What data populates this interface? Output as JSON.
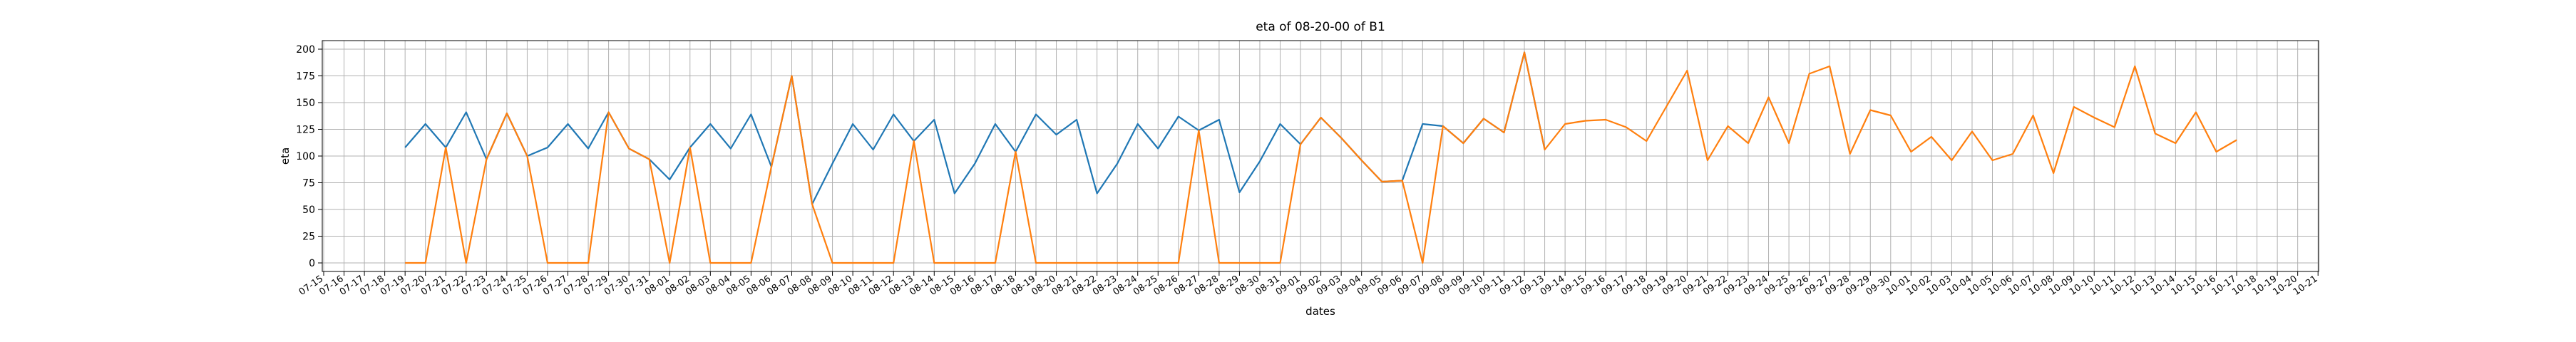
{
  "chart_data": {
    "type": "line",
    "title": "eta of 08-20-00 of B1",
    "xlabel": "dates",
    "ylabel": "eta",
    "grid": true,
    "ylim": [
      -8,
      208
    ],
    "yticks": [
      0,
      25,
      50,
      75,
      100,
      125,
      150,
      175,
      200
    ],
    "x_start": "07-15",
    "x_end": "10-21",
    "x_tick_labels": [
      "07-15",
      "07-16",
      "07-17",
      "07-18",
      "07-19",
      "07-20",
      "07-21",
      "07-22",
      "07-23",
      "07-24",
      "07-25",
      "07-26",
      "07-27",
      "07-28",
      "07-29",
      "07-30",
      "07-31",
      "08-01",
      "08-02",
      "08-03",
      "08-04",
      "08-05",
      "08-06",
      "08-07",
      "08-08",
      "08-09",
      "08-10",
      "08-11",
      "08-12",
      "08-13",
      "08-14",
      "08-15",
      "08-16",
      "08-17",
      "08-18",
      "08-19",
      "08-20",
      "08-21",
      "08-22",
      "08-23",
      "08-24",
      "08-25",
      "08-26",
      "08-27",
      "08-28",
      "08-29",
      "08-30",
      "08-31",
      "09-01",
      "09-02",
      "09-03",
      "09-04",
      "09-05",
      "09-06",
      "09-07",
      "09-08",
      "09-09",
      "09-10",
      "09-11",
      "09-12",
      "09-13",
      "09-14",
      "09-15",
      "09-16",
      "09-17",
      "09-18",
      "09-19",
      "09-20",
      "09-21",
      "09-22",
      "09-23",
      "09-24",
      "09-25",
      "09-26",
      "09-27",
      "09-28",
      "09-29",
      "09-30",
      "10-01",
      "10-02",
      "10-03",
      "10-04",
      "10-05",
      "10-06",
      "10-07",
      "10-08",
      "10-09",
      "10-10",
      "10-11",
      "10-12",
      "10-13",
      "10-14",
      "10-15",
      "10-16",
      "10-17",
      "10-18",
      "10-19",
      "10-20",
      "10-21"
    ],
    "series": [
      {
        "color": "#1f77b4",
        "x": [
          "07-19",
          "07-20",
          "07-21",
          "07-22",
          "07-23",
          "07-24",
          "07-25",
          "07-26",
          "07-27",
          "07-28",
          "07-29",
          "07-30",
          "07-31",
          "08-01",
          "08-02",
          "08-03",
          "08-04",
          "08-05",
          "08-06",
          "08-07",
          "08-08",
          "08-09",
          "08-10",
          "08-11",
          "08-12",
          "08-13",
          "08-14",
          "08-15",
          "08-16",
          "08-17",
          "08-18",
          "08-19",
          "08-20",
          "08-21",
          "08-22",
          "08-23",
          "08-24",
          "08-25",
          "08-26",
          "08-27",
          "08-28",
          "08-29",
          "08-30",
          "08-31",
          "09-01",
          "09-02",
          "09-03",
          "09-04",
          "09-05",
          "09-06",
          "09-07",
          "09-08",
          "09-09",
          "09-10",
          "09-11",
          "09-12",
          "09-13"
        ],
        "y": [
          108,
          130,
          108,
          141,
          97,
          140,
          100,
          108,
          130,
          107,
          141,
          107,
          97,
          78,
          108,
          130,
          107,
          139,
          90,
          175,
          55,
          93,
          130,
          106,
          139,
          114,
          134,
          65,
          93,
          130,
          104,
          139,
          120,
          134,
          65,
          93,
          130,
          107,
          137,
          124,
          134,
          66,
          95,
          130,
          111,
          136,
          117,
          96,
          76,
          77,
          130,
          128,
          112,
          135,
          122,
          197,
          106
        ]
      },
      {
        "color": "#ff7f0e",
        "x": [
          "07-19",
          "07-20",
          "07-21",
          "07-22",
          "07-23",
          "07-24",
          "07-25",
          "07-26",
          "07-27",
          "07-28",
          "07-29",
          "07-30",
          "07-31",
          "08-01",
          "08-02",
          "08-03",
          "08-04",
          "08-05",
          "08-06",
          "08-07",
          "08-08",
          "08-09",
          "08-10",
          "08-11",
          "08-12",
          "08-13",
          "08-14",
          "08-15",
          "08-16",
          "08-17",
          "08-18",
          "08-19",
          "08-20",
          "08-21",
          "08-22",
          "08-23",
          "08-24",
          "08-25",
          "08-26",
          "08-27",
          "08-28",
          "08-29",
          "08-30",
          "08-31",
          "09-01",
          "09-02",
          "09-03",
          "09-04",
          "09-05",
          "09-06",
          "09-07",
          "09-08",
          "09-09",
          "09-10",
          "09-11",
          "09-12",
          "09-13",
          "09-14",
          "09-15",
          "09-16",
          "09-17",
          "09-18",
          "09-19",
          "09-20",
          "09-21",
          "09-22",
          "09-23",
          "09-24",
          "09-25",
          "09-26",
          "09-27",
          "09-28",
          "09-29",
          "09-30",
          "10-01",
          "10-02",
          "10-03",
          "10-04",
          "10-05",
          "10-06",
          "10-07",
          "10-08",
          "10-09",
          "10-10",
          "10-11",
          "10-12",
          "10-13",
          "10-14",
          "10-15",
          "10-16",
          "10-17"
        ],
        "y": [
          0,
          0,
          108,
          0,
          97,
          140,
          100,
          0,
          0,
          0,
          141,
          107,
          97,
          0,
          108,
          0,
          0,
          0,
          90,
          175,
          55,
          0,
          0,
          0,
          0,
          114,
          0,
          0,
          0,
          0,
          104,
          0,
          0,
          0,
          0,
          0,
          0,
          0,
          0,
          124,
          0,
          0,
          0,
          0,
          111,
          136,
          117,
          96,
          76,
          77,
          0,
          128,
          112,
          135,
          122,
          197,
          106,
          130,
          133,
          134,
          127,
          114,
          147,
          180,
          96,
          128,
          112,
          155,
          112,
          177,
          184,
          102,
          143,
          138,
          104,
          118,
          96,
          123,
          96,
          102,
          138,
          84,
          146,
          136,
          127,
          184,
          121,
          112,
          141,
          104,
          115
        ]
      }
    ]
  }
}
